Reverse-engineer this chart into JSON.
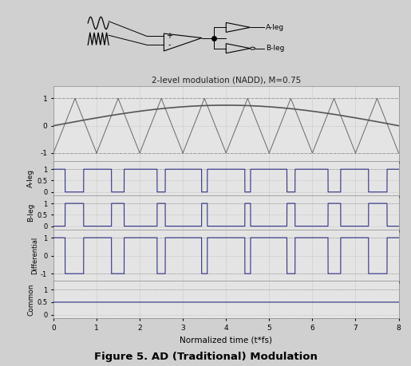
{
  "title": "2-level modulation (NADD), M=0.75",
  "xlabel": "Normalized time (t*fs)",
  "figure_title": "Figure 5. AD (Traditional) Modulation",
  "M": 0.75,
  "T": 8,
  "carrier_freq": 1.0,
  "ref_freq_cycles": 0.5,
  "background_color": "#d0d0d0",
  "plot_bg": "#e4e4e4",
  "grid_color": "#b8b8b8",
  "line_color_carrier": "#696969",
  "line_color_ref": "#555555",
  "line_color_pwm": "#333388",
  "dashed_color": "#999999",
  "subplot_labels": [
    "A-leg",
    "B-leg",
    "Differential",
    "Common"
  ]
}
